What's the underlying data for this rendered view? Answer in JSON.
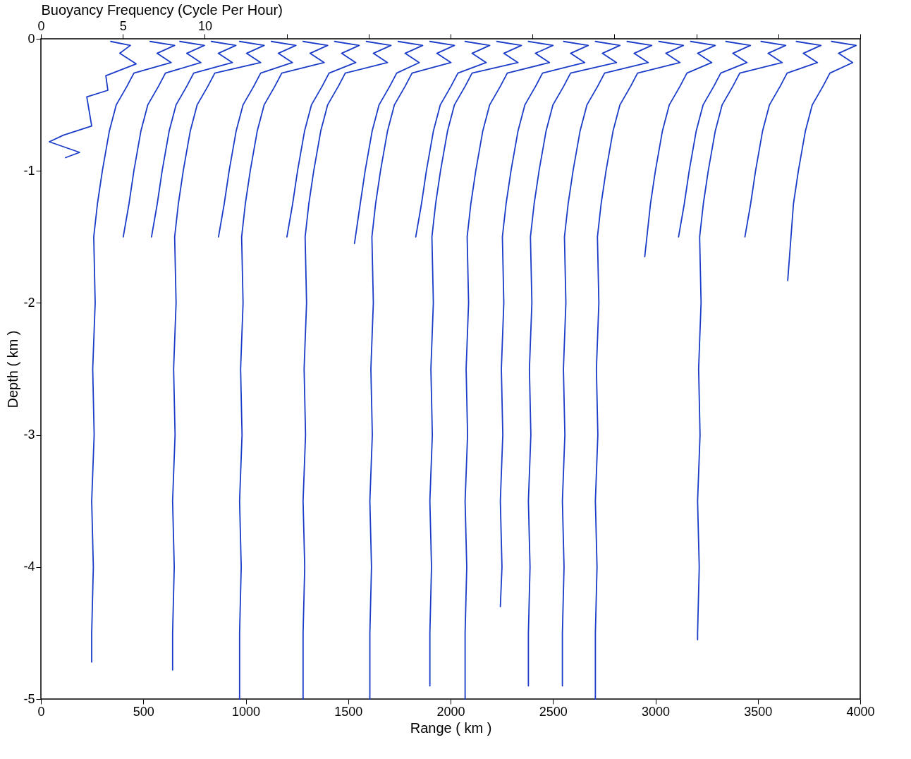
{
  "chart_data": {
    "type": "line",
    "xlabel": "Range ( km )",
    "ylabel": "Depth ( km )",
    "x2label": "Buoyancy Frequency (Cycle Per Hour)",
    "xlim": [
      0,
      4000
    ],
    "xticks": [
      0,
      500,
      1000,
      1500,
      2000,
      2500,
      3000,
      3500,
      4000
    ],
    "ylim": [
      -5,
      0
    ],
    "yticks": [
      -5,
      -4,
      -3,
      -2,
      -1,
      0
    ],
    "x2lim": [
      0,
      50
    ],
    "x2ticks": [
      0,
      5,
      10,
      {
        "value": 15,
        "label": null
      },
      {
        "value": 20,
        "label": null
      },
      {
        "value": 25,
        "label": null
      },
      {
        "value": 30,
        "label": null
      },
      {
        "value": 35,
        "label": null
      },
      {
        "value": 40,
        "label": null
      },
      {
        "value": 45,
        "label": null
      },
      {
        "value": 50,
        "label": null
      }
    ],
    "grid": false,
    "series": [
      {
        "color": "#1a3cc8",
        "x": [
          341,
          437,
          385,
          465,
          317,
          327,
          224,
          248,
          110,
          41,
          189,
          120
        ],
        "values": [
          -0.02,
          -0.05,
          -0.11,
          -0.19,
          -0.28,
          -0.39,
          -0.44,
          -0.66,
          -0.73,
          -0.78,
          -0.86,
          -0.9
        ]
      },
      {
        "color": "#1a3cc8",
        "x": [
          533,
          653,
          567,
          636,
          454,
          420,
          368,
          334,
          300,
          276,
          258,
          265,
          253,
          260,
          248,
          256,
          248,
          248
        ],
        "values": [
          -0.02,
          -0.05,
          -0.11,
          -0.18,
          -0.26,
          -0.36,
          -0.5,
          -0.7,
          -1,
          -1.25,
          -1.5,
          -2,
          -2.5,
          -3,
          -3.5,
          -4,
          -4.5,
          -4.72
        ]
      },
      {
        "color": "#1a3cc8",
        "x": [
          678,
          798,
          712,
          781,
          608,
          574,
          522,
          488,
          454,
          430,
          402
        ],
        "values": [
          -0.02,
          -0.05,
          -0.11,
          -0.18,
          -0.26,
          -0.36,
          -0.5,
          -0.7,
          -1,
          -1.25,
          -1.5
        ]
      },
      {
        "color": "#1a3cc8",
        "x": [
          832,
          952,
          866,
          935,
          746,
          712,
          660,
          626,
          592,
          568,
          540
        ],
        "values": [
          -0.02,
          -0.05,
          -0.11,
          -0.18,
          -0.26,
          -0.36,
          -0.5,
          -0.7,
          -1,
          -1.25,
          -1.5
        ]
      },
      {
        "color": "#1a3cc8",
        "x": [
          970,
          1090,
          1004,
          1073,
          849,
          815,
          763,
          729,
          695,
          671,
          653,
          660,
          648,
          655,
          643,
          651,
          643,
          643
        ],
        "values": [
          -0.02,
          -0.05,
          -0.11,
          -0.18,
          -0.26,
          -0.36,
          -0.5,
          -0.7,
          -1,
          -1.25,
          -1.5,
          -2,
          -2.5,
          -3,
          -3.5,
          -4,
          -4.5,
          -4.78
        ]
      },
      {
        "color": "#1a3cc8",
        "x": [
          1125,
          1245,
          1159,
          1228,
          1073,
          1039,
          987,
          953,
          919,
          895,
          867
        ],
        "values": [
          -0.02,
          -0.05,
          -0.11,
          -0.18,
          -0.26,
          -0.36,
          -0.5,
          -0.7,
          -1,
          -1.25,
          -1.5
        ]
      },
      {
        "color": "#1a3cc8",
        "x": [
          1280,
          1400,
          1314,
          1383,
          1176,
          1142,
          1090,
          1056,
          1022,
          998,
          980,
          987,
          975,
          982,
          970,
          978,
          970,
          970
        ],
        "values": [
          -0.02,
          -0.05,
          -0.11,
          -0.18,
          -0.26,
          -0.36,
          -0.5,
          -0.7,
          -1,
          -1.25,
          -1.5,
          -2,
          -2.5,
          -3,
          -3.5,
          -4,
          -4.5,
          -5
        ]
      },
      {
        "color": "#1a3cc8",
        "x": [
          1434,
          1554,
          1468,
          1537,
          1407,
          1373,
          1321,
          1287,
          1253,
          1229,
          1201
        ],
        "values": [
          -0.02,
          -0.05,
          -0.11,
          -0.18,
          -0.26,
          -0.36,
          -0.5,
          -0.7,
          -1,
          -1.25,
          -1.5
        ]
      },
      {
        "color": "#1a3cc8",
        "x": [
          1589,
          1709,
          1623,
          1692,
          1486,
          1452,
          1400,
          1366,
          1332,
          1308,
          1290,
          1297,
          1285,
          1292,
          1280,
          1288,
          1280,
          1280
        ],
        "values": [
          -0.02,
          -0.05,
          -0.11,
          -0.18,
          -0.26,
          -0.36,
          -0.5,
          -0.7,
          -1,
          -1.25,
          -1.5,
          -2,
          -2.5,
          -3,
          -3.5,
          -4,
          -4.5,
          -5
        ]
      },
      {
        "color": "#1a3cc8",
        "x": [
          1744,
          1864,
          1778,
          1847,
          1737,
          1703,
          1651,
          1617,
          1583,
          1559,
          1531
        ],
        "values": [
          -0.02,
          -0.05,
          -0.11,
          -0.18,
          -0.26,
          -0.36,
          -0.5,
          -0.7,
          -1,
          -1.25,
          -1.55
        ]
      },
      {
        "color": "#1a3cc8",
        "x": [
          1899,
          2019,
          1933,
          2002,
          1812,
          1778,
          1726,
          1692,
          1658,
          1634,
          1616,
          1623,
          1611,
          1618,
          1606,
          1614,
          1606,
          1606
        ],
        "values": [
          -0.02,
          -0.05,
          -0.11,
          -0.18,
          -0.26,
          -0.36,
          -0.5,
          -0.7,
          -1,
          -1.25,
          -1.5,
          -2,
          -2.5,
          -3,
          -3.5,
          -4,
          -4.5,
          -5
        ]
      },
      {
        "color": "#1a3cc8",
        "x": [
          2071,
          2191,
          2105,
          2174,
          2036,
          2002,
          1950,
          1916,
          1882,
          1858,
          1830
        ],
        "values": [
          -0.02,
          -0.05,
          -0.11,
          -0.18,
          -0.26,
          -0.36,
          -0.5,
          -0.7,
          -1,
          -1.25,
          -1.5
        ]
      },
      {
        "color": "#1a3cc8",
        "x": [
          2226,
          2346,
          2260,
          2329,
          2105,
          2071,
          2019,
          1985,
          1951,
          1927,
          1909,
          1916,
          1904,
          1911,
          1899,
          1907,
          1899,
          1899
        ],
        "values": [
          -0.02,
          -0.05,
          -0.11,
          -0.18,
          -0.26,
          -0.36,
          -0.5,
          -0.7,
          -1,
          -1.25,
          -1.5,
          -2,
          -2.5,
          -3,
          -3.5,
          -4,
          -4.5,
          -4.9
        ]
      },
      {
        "color": "#1a3cc8",
        "x": [
          2380,
          2500,
          2414,
          2483,
          2277,
          2243,
          2191,
          2157,
          2123,
          2099,
          2081,
          2088,
          2076,
          2083,
          2071,
          2079,
          2071,
          2071
        ],
        "values": [
          -0.02,
          -0.05,
          -0.11,
          -0.18,
          -0.26,
          -0.36,
          -0.5,
          -0.7,
          -1,
          -1.25,
          -1.5,
          -2,
          -2.5,
          -3,
          -3.5,
          -4,
          -4.5,
          -5
        ]
      },
      {
        "color": "#1a3cc8",
        "x": [
          2552,
          2672,
          2586,
          2655,
          2449,
          2415,
          2363,
          2329,
          2295,
          2271,
          2253,
          2260,
          2248,
          2255,
          2243,
          2251,
          2243
        ],
        "values": [
          -0.02,
          -0.05,
          -0.11,
          -0.18,
          -0.26,
          -0.36,
          -0.5,
          -0.7,
          -1,
          -1.25,
          -1.5,
          -2,
          -2.5,
          -3,
          -3.5,
          -4,
          -4.3
        ]
      },
      {
        "color": "#1a3cc8",
        "x": [
          2707,
          2827,
          2741,
          2810,
          2586,
          2552,
          2500,
          2466,
          2432,
          2408,
          2390,
          2397,
          2385,
          2392,
          2380,
          2388,
          2380,
          2380
        ],
        "values": [
          -0.02,
          -0.05,
          -0.11,
          -0.18,
          -0.26,
          -0.36,
          -0.5,
          -0.7,
          -1,
          -1.25,
          -1.5,
          -2,
          -2.5,
          -3,
          -3.5,
          -4,
          -4.5,
          -4.9
        ]
      },
      {
        "color": "#1a3cc8",
        "x": [
          2862,
          2982,
          2896,
          2965,
          2752,
          2718,
          2666,
          2632,
          2598,
          2574,
          2556,
          2563,
          2551,
          2558,
          2546,
          2554,
          2546,
          2546
        ],
        "values": [
          -0.02,
          -0.05,
          -0.11,
          -0.18,
          -0.26,
          -0.36,
          -0.5,
          -0.7,
          -1,
          -1.25,
          -1.5,
          -2,
          -2.5,
          -3,
          -3.5,
          -4,
          -4.5,
          -4.9
        ]
      },
      {
        "color": "#1a3cc8",
        "x": [
          3017,
          3137,
          3051,
          3120,
          2913,
          2879,
          2827,
          2793,
          2759,
          2735,
          2717,
          2724,
          2712,
          2719,
          2707,
          2715,
          2707,
          2707
        ],
        "values": [
          -0.02,
          -0.05,
          -0.11,
          -0.18,
          -0.26,
          -0.36,
          -0.5,
          -0.7,
          -1,
          -1.25,
          -1.5,
          -2,
          -2.5,
          -3,
          -3.5,
          -4,
          -4.5,
          -5
        ]
      },
      {
        "color": "#1a3cc8",
        "x": [
          3172,
          3292,
          3206,
          3275,
          3154,
          3120,
          3068,
          3034,
          3000,
          2976,
          2948
        ],
        "values": [
          -0.02,
          -0.05,
          -0.11,
          -0.18,
          -0.26,
          -0.36,
          -0.5,
          -0.7,
          -1,
          -1.25,
          -1.65
        ]
      },
      {
        "color": "#1a3cc8",
        "x": [
          3344,
          3464,
          3378,
          3447,
          3319,
          3285,
          3233,
          3199,
          3165,
          3141,
          3113
        ],
        "values": [
          -0.02,
          -0.05,
          -0.11,
          -0.18,
          -0.26,
          -0.36,
          -0.5,
          -0.7,
          -1,
          -1.25,
          -1.5
        ]
      },
      {
        "color": "#1a3cc8",
        "x": [
          3516,
          3636,
          3550,
          3619,
          3412,
          3378,
          3326,
          3292,
          3258,
          3234,
          3216,
          3223,
          3211,
          3218,
          3206,
          3214,
          3206,
          3206
        ],
        "values": [
          -0.02,
          -0.05,
          -0.11,
          -0.18,
          -0.26,
          -0.36,
          -0.5,
          -0.7,
          -1,
          -1.25,
          -1.5,
          -2,
          -2.5,
          -3,
          -3.5,
          -4,
          -4.5,
          -4.55
        ]
      },
      {
        "color": "#1a3cc8",
        "x": [
          3688,
          3808,
          3722,
          3791,
          3643,
          3609,
          3557,
          3523,
          3489,
          3465,
          3437
        ],
        "values": [
          -0.02,
          -0.05,
          -0.11,
          -0.18,
          -0.26,
          -0.36,
          -0.5,
          -0.7,
          -1,
          -1.25,
          -1.5
        ]
      },
      {
        "color": "#1a3cc8",
        "x": [
          3860,
          3980,
          3894,
          3963,
          3852,
          3818,
          3766,
          3732,
          3698,
          3674,
          3646
        ],
        "values": [
          -0.02,
          -0.05,
          -0.11,
          -0.18,
          -0.26,
          -0.36,
          -0.5,
          -0.7,
          -1,
          -1.25,
          -1.83
        ]
      }
    ]
  }
}
